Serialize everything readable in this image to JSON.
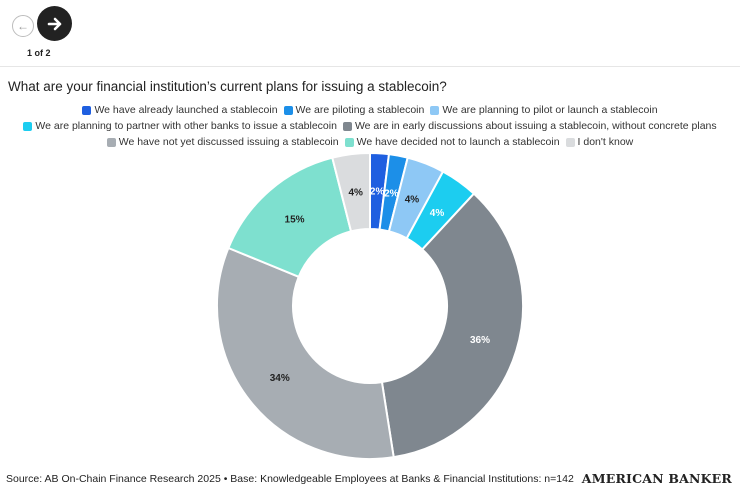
{
  "nav": {
    "prev_icon": "arrow-left-icon",
    "next_icon": "arrow-right-icon",
    "page_indicator": "1 of 2"
  },
  "chart_data": {
    "type": "pie",
    "donut": true,
    "title": "What are your financial institution’s current plans for issuing a stablecoin?",
    "legend_position": "top",
    "series": [
      {
        "name": "We have already launched a stablecoin",
        "value": 2,
        "label": "2%",
        "color": "#1f5fe0"
      },
      {
        "name": "We are piloting a stablecoin",
        "value": 2,
        "label": "2%",
        "color": "#1c8fe8"
      },
      {
        "name": "We are planning to pilot or launch a stablecoin",
        "value": 4,
        "label": "4%",
        "color": "#8ec8f5"
      },
      {
        "name": "We are planning to partner with other banks to issue a stablecoin",
        "value": 4,
        "label": "4%",
        "color": "#1ccdf0"
      },
      {
        "name": "We are in early discussions about issuing a stablecoin, without concrete plans",
        "value": 36,
        "label": "36%",
        "color": "#7f878f"
      },
      {
        "name": "We have not yet discussed issuing a stablecoin",
        "value": 34,
        "label": "34%",
        "color": "#a7adb3"
      },
      {
        "name": "We have decided not to launch a stablecoin",
        "value": 15,
        "label": "15%",
        "color": "#7ee0cf"
      },
      {
        "name": "I don't know",
        "value": 4,
        "label": "4%",
        "color": "#dadcde"
      }
    ]
  },
  "footer": {
    "source": "Source: AB On-Chain Finance Research 2025 • Base: Knowledgeable Employees at Banks & Financial Institutions: n=142",
    "brand": "AMERICAN BANKER"
  }
}
